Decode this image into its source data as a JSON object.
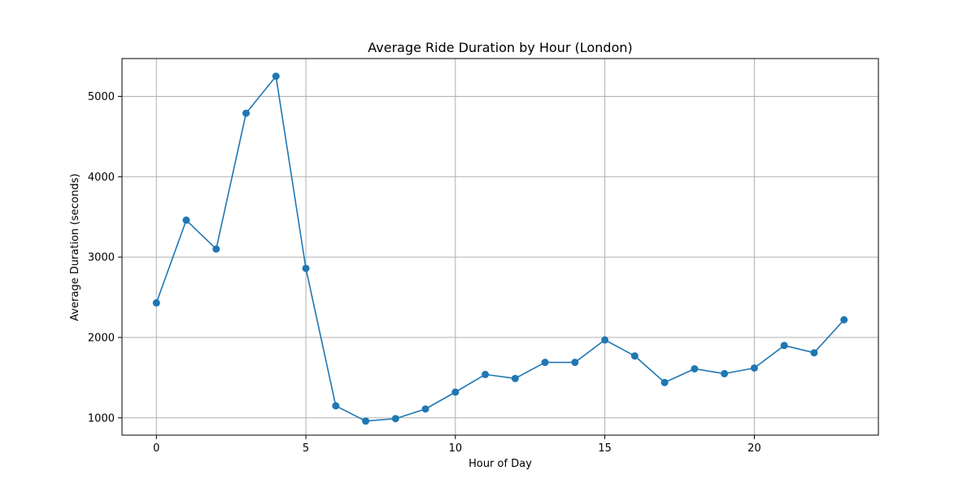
{
  "chart_data": {
    "type": "line",
    "title": "Average Ride Duration by Hour (London)",
    "xlabel": "Hour of Day",
    "ylabel": "Average Duration (seconds)",
    "xlim": [
      -1.15,
      24.15
    ],
    "ylim": [
      785,
      5470
    ],
    "x_ticks": [
      0,
      5,
      10,
      15,
      20
    ],
    "y_ticks": [
      1000,
      2000,
      3000,
      4000,
      5000
    ],
    "grid": true,
    "legend": "none",
    "colors": {
      "series": "#1f77b4",
      "grid": "#b0b0b0",
      "axes": "#000000"
    },
    "series": [
      {
        "x": [
          0,
          1,
          2,
          3,
          4,
          5,
          6,
          7,
          8,
          9,
          10,
          11,
          12,
          13,
          14,
          15,
          16,
          17,
          18,
          19,
          20,
          21,
          22,
          23
        ],
        "values": [
          2430,
          3460,
          3100,
          4790,
          5250,
          2860,
          1150,
          960,
          990,
          1110,
          1320,
          1540,
          1490,
          1690,
          1690,
          1970,
          1770,
          1440,
          1610,
          1550,
          1620,
          1900,
          1810,
          2220
        ]
      }
    ]
  }
}
